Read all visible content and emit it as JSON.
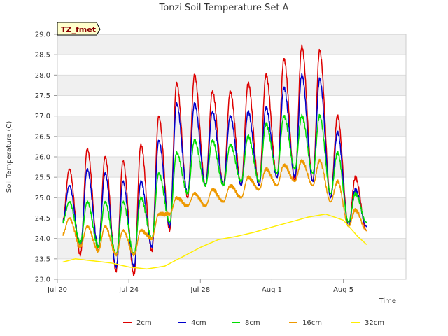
{
  "chart_data": {
    "type": "line",
    "title": "Tonzi Soil Temperature Set A",
    "xlabel": "Time",
    "ylabel": "Soil Temperature (C)",
    "tag": "TZ_fmet",
    "xlim": [
      0,
      19.5
    ],
    "ylim": [
      23.0,
      29.0
    ],
    "yticks": [
      "23.0",
      "23.5",
      "24.0",
      "24.5",
      "25.0",
      "25.5",
      "26.0",
      "26.5",
      "27.0",
      "27.5",
      "28.0",
      "28.5",
      "29.0"
    ],
    "xticks": [
      {
        "label": "Jul 20",
        "value": 0
      },
      {
        "label": "Jul 24",
        "value": 4
      },
      {
        "label": "Jul 28",
        "value": 8
      },
      {
        "label": "Aug 1",
        "value": 12
      },
      {
        "label": "Aug 5",
        "value": 16
      }
    ],
    "grid": true,
    "legend_position": "bottom",
    "x_range_days": [
      0.3,
      17.3
    ],
    "series": [
      {
        "name": "2cm",
        "color": "#dd0000",
        "width": 1.5,
        "daily_max": [
          25.7,
          26.2,
          26.0,
          25.9,
          26.3,
          27.0,
          27.8,
          28.0,
          27.6,
          27.6,
          27.8,
          28.0,
          28.4,
          28.7,
          28.6,
          27.0,
          25.5,
          25.0
        ],
        "daily_min": [
          24.4,
          23.6,
          23.7,
          23.2,
          23.1,
          23.7,
          24.2,
          25.0,
          25.3,
          25.3,
          25.3,
          25.3,
          25.5,
          25.4,
          25.4,
          25.0,
          24.3,
          24.2
        ]
      },
      {
        "name": "4cm",
        "color": "#0000cc",
        "width": 1.5,
        "daily_max": [
          25.3,
          25.7,
          25.6,
          25.4,
          25.4,
          26.4,
          27.3,
          27.3,
          27.1,
          27.0,
          27.1,
          27.2,
          27.7,
          28.0,
          27.9,
          26.6,
          25.2,
          25.0
        ],
        "daily_min": [
          24.4,
          23.8,
          23.8,
          23.3,
          23.3,
          23.8,
          24.3,
          25.1,
          25.3,
          25.3,
          25.3,
          25.3,
          25.5,
          25.5,
          25.4,
          25.0,
          24.3,
          24.3
        ]
      },
      {
        "name": "8cm",
        "color": "#00dd00",
        "width": 1.5,
        "daily_max": [
          24.9,
          24.9,
          24.9,
          24.9,
          25.0,
          25.6,
          26.1,
          26.4,
          26.4,
          26.3,
          26.5,
          26.8,
          27.0,
          27.0,
          27.0,
          26.1,
          25.1,
          24.6
        ],
        "daily_min": [
          24.4,
          23.9,
          23.8,
          23.6,
          23.6,
          24.0,
          24.4,
          25.1,
          25.3,
          25.3,
          25.4,
          25.4,
          25.6,
          25.7,
          25.6,
          25.1,
          24.4,
          24.4
        ]
      },
      {
        "name": "16cm",
        "color": "#ee9900",
        "width": 1.5,
        "daily_max": [
          24.5,
          24.3,
          24.3,
          24.2,
          24.2,
          24.6,
          25.0,
          25.1,
          25.2,
          25.3,
          25.5,
          25.7,
          25.8,
          25.9,
          25.9,
          25.4,
          24.7,
          24.4
        ],
        "daily_min": [
          24.1,
          23.8,
          23.7,
          23.6,
          23.6,
          24.0,
          24.6,
          24.8,
          24.8,
          24.9,
          25.0,
          25.2,
          25.3,
          25.4,
          25.3,
          24.9,
          24.3,
          24.2
        ]
      },
      {
        "name": "32cm",
        "color": "#ffee00",
        "width": 1.5,
        "points": [
          [
            0.3,
            23.42
          ],
          [
            1,
            23.5
          ],
          [
            2,
            23.45
          ],
          [
            3,
            23.4
          ],
          [
            4,
            23.3
          ],
          [
            5,
            23.25
          ],
          [
            6,
            23.32
          ],
          [
            7,
            23.55
          ],
          [
            8,
            23.78
          ],
          [
            9,
            23.97
          ],
          [
            10,
            24.05
          ],
          [
            11,
            24.15
          ],
          [
            12,
            24.28
          ],
          [
            13,
            24.4
          ],
          [
            14,
            24.52
          ],
          [
            15,
            24.6
          ],
          [
            16,
            24.45
          ],
          [
            16.8,
            24.05
          ],
          [
            17.3,
            23.85
          ]
        ]
      }
    ]
  }
}
